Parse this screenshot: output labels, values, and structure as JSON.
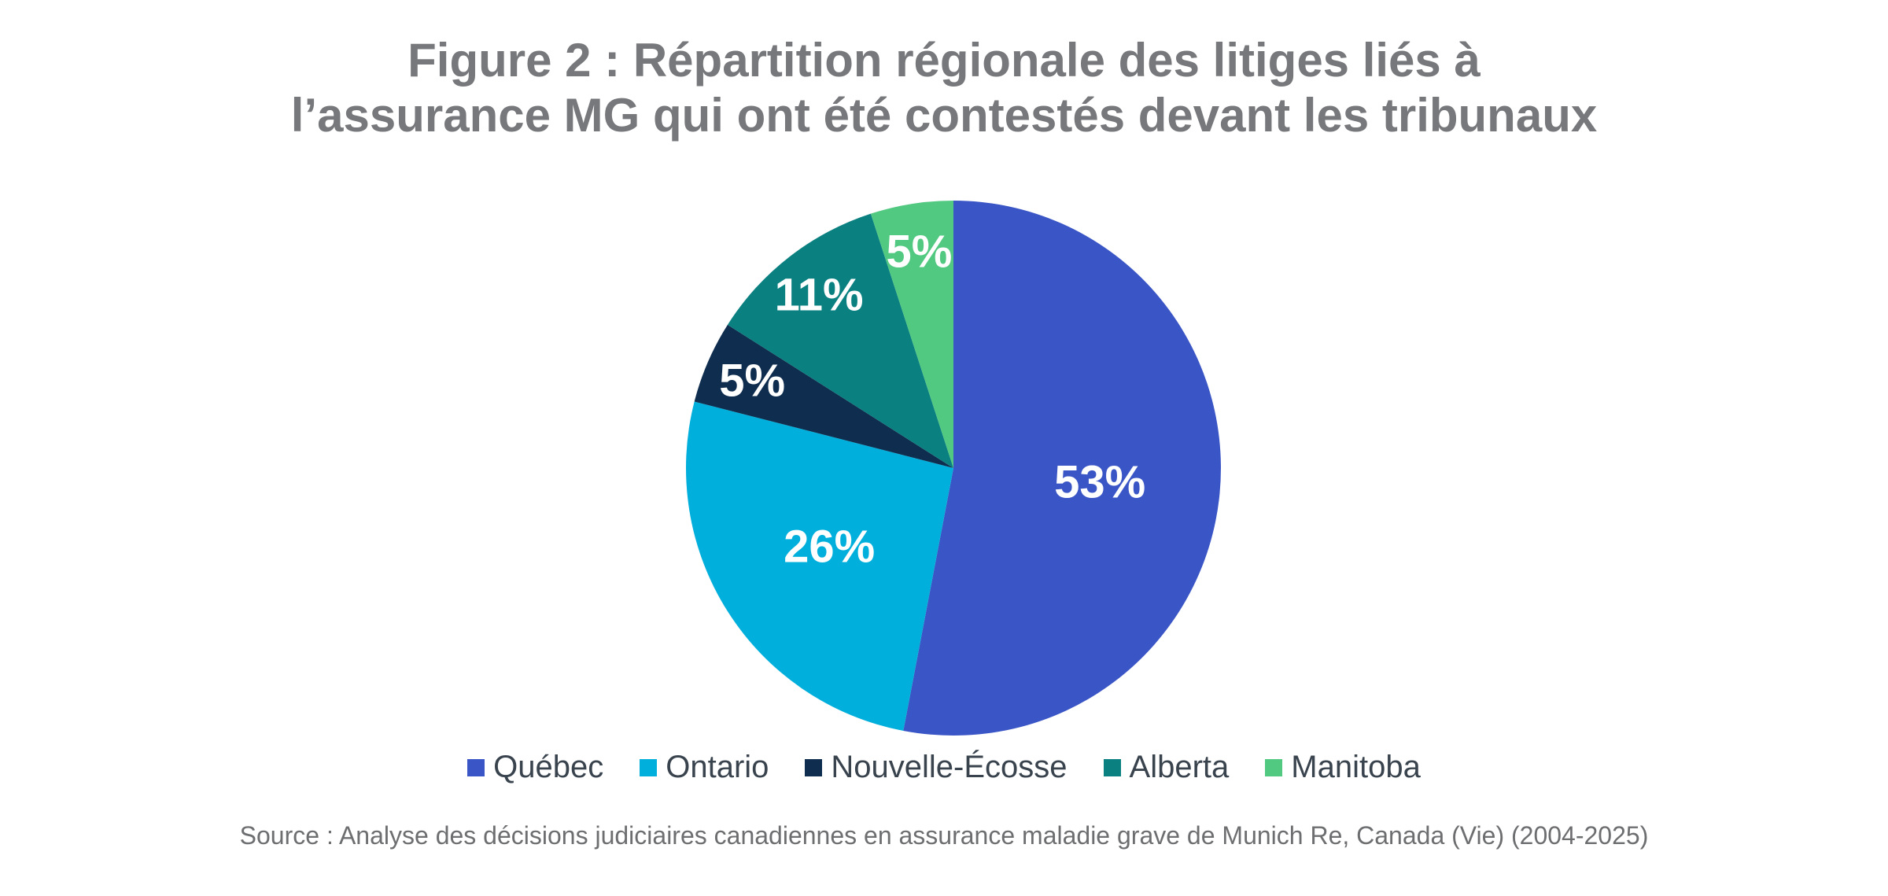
{
  "figure": {
    "title_line1": "Figure 2 : Répartition régionale des litiges liés à",
    "title_line2": "l’assurance MG qui ont été contestés devant les tribunaux",
    "source": "Source : Analyse des décisions judiciaires canadiennes en assurance maladie grave de Munich Re, Canada (Vie) (2004-2025)"
  },
  "chart_data": {
    "type": "pie",
    "title": "Figure 2 : Répartition régionale des litiges liés à l’assurance MG qui ont été contestés devant les tribunaux",
    "unit": "percent",
    "start_angle": "12-oclock",
    "direction": "clockwise",
    "legend_position": "bottom",
    "data_label_color": "#FFFFFF",
    "categories": [
      "Québec",
      "Ontario",
      "Nouvelle-Écosse",
      "Alberta",
      "Manitoba"
    ],
    "values": [
      53,
      26,
      5,
      11,
      5
    ],
    "data_labels": [
      "53%",
      "26%",
      "5%",
      "11%",
      "5%"
    ],
    "colors": [
      "#3A55C5",
      "#00AFDB",
      "#0F2D4F",
      "#0A8080",
      "#52C981"
    ]
  },
  "style": {
    "background": "#FFFFFF",
    "title_color": "#77787B",
    "legend_text_color": "#39434E",
    "source_text_color": "#6D6E70"
  }
}
